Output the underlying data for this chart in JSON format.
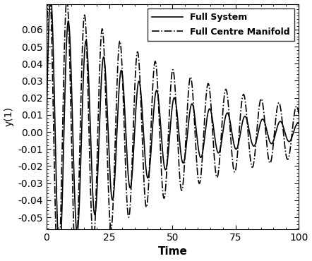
{
  "title": "",
  "xlabel": "Time",
  "ylabel": "y(1)",
  "xlim": [
    0,
    100
  ],
  "ylim": [
    -0.057,
    0.075
  ],
  "yticks": [
    -0.05,
    -0.04,
    -0.03,
    -0.02,
    -0.01,
    0.0,
    0.01,
    0.02,
    0.03,
    0.04,
    0.05,
    0.06
  ],
  "xticks": [
    0,
    25,
    50,
    75,
    100
  ],
  "legend": [
    {
      "label": "Full System",
      "linestyle": "solid",
      "color": "black",
      "linewidth": 1.5
    },
    {
      "label": "Full Centre Manifold",
      "linestyle": "dashdot",
      "color": "black",
      "linewidth": 1.5
    }
  ],
  "full_system": {
    "amplitude": 0.083,
    "decay": 0.028,
    "omega": 0.898,
    "phase": 0.0
  },
  "centre_manifold": {
    "amplitude": 0.09,
    "decay": 0.018,
    "omega": 0.898,
    "phase": 0.52
  },
  "background_color": "#ffffff",
  "figsize": [
    4.42,
    3.7
  ],
  "dpi": 100
}
